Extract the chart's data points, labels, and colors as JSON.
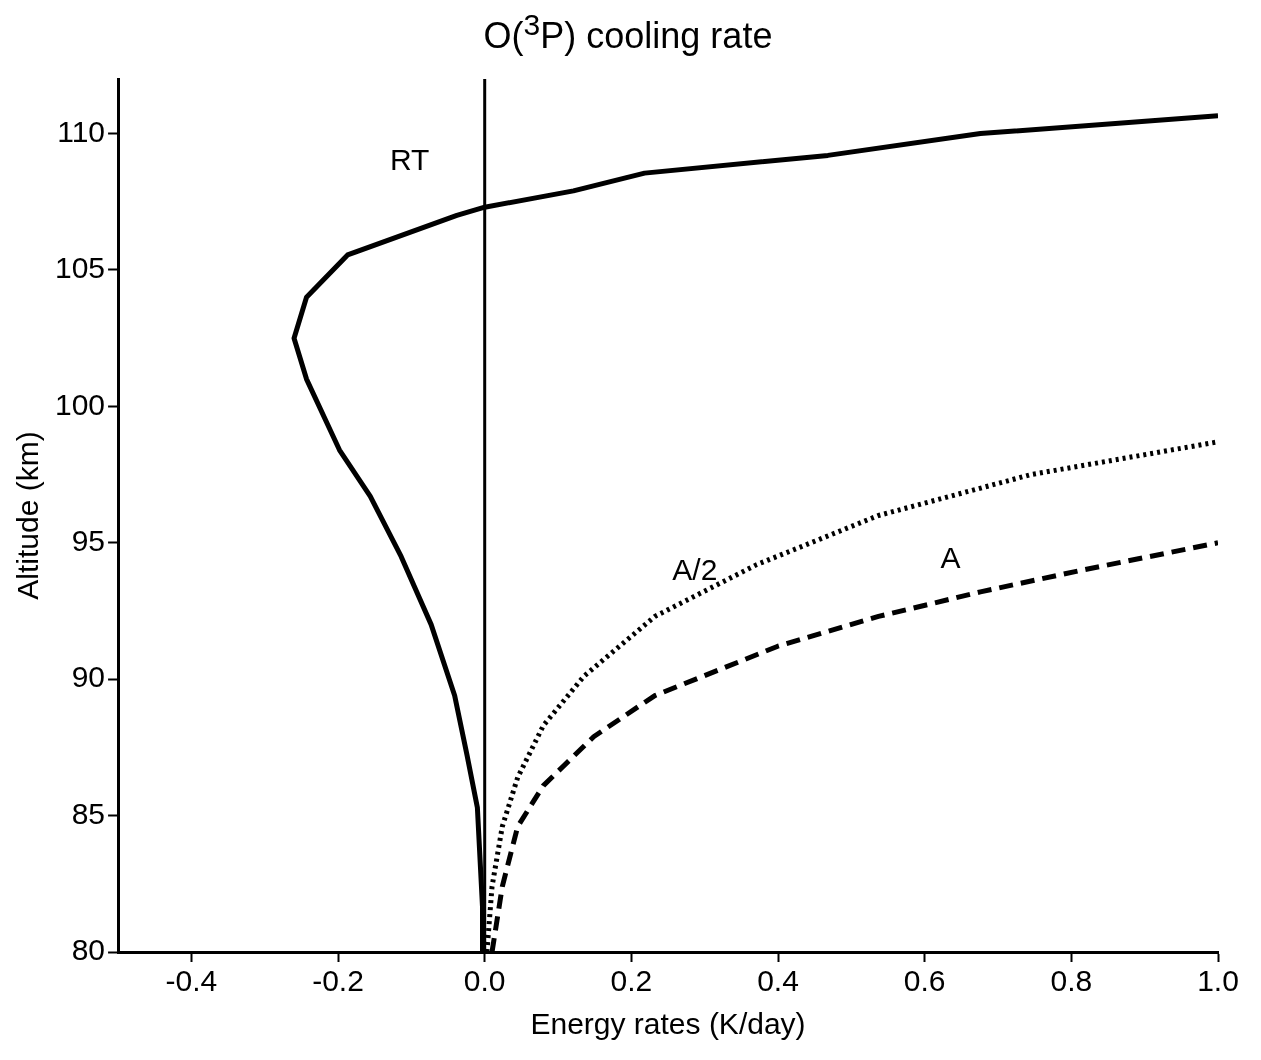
{
  "chart_data": {
    "type": "line",
    "title": "O($^{3}$P) cooling rate",
    "xlabel": "Energy rates (K/day)",
    "ylabel": "Altitude (km)",
    "xlim": [
      -0.5,
      1.0
    ],
    "xticks": [
      {
        "value": -0.4,
        "label": "-0.4"
      },
      {
        "value": -0.2,
        "label": "-0.2"
      },
      {
        "value": 0,
        "label": "0.0"
      },
      {
        "value": 0.2,
        "label": "0.2"
      },
      {
        "value": 0.4,
        "label": "0.4"
      },
      {
        "value": 0.6,
        "label": "0.6"
      },
      {
        "value": 0.8,
        "label": "0.8"
      },
      {
        "value": 1,
        "label": "1.0"
      }
    ],
    "ylim": [
      80,
      112
    ],
    "yticks": [
      80,
      85,
      90,
      95,
      100,
      105,
      110
    ],
    "grid": false,
    "legend": false,
    "marker": "none",
    "ref_lines": [
      {
        "axis": "x",
        "value": 0,
        "color": "#000000",
        "line_style": "solid"
      }
    ],
    "series": [
      {
        "name": "RT",
        "color": "#000000",
        "line_style": "solid",
        "x": [
          -0.003,
          -0.003,
          -0.01,
          -0.024,
          -0.041,
          -0.073,
          -0.114,
          -0.156,
          -0.198,
          -0.243,
          -0.26,
          -0.243,
          -0.187,
          -0.038,
          0,
          0.121,
          0.218,
          0.468,
          0.676,
          1.0
        ],
        "values": [
          80,
          81.65,
          85.3,
          87.2,
          89.4,
          92,
          94.5,
          96.7,
          98.4,
          101,
          102.5,
          104,
          105.55,
          107,
          107.3,
          107.9,
          108.55,
          109.2,
          110,
          110.65
        ]
      },
      {
        "name": "A/2",
        "color": "#000000",
        "line_style": "dotted",
        "x": [
          0.003,
          0.01,
          0.024,
          0.045,
          0.08,
          0.135,
          0.232,
          0.371,
          0.537,
          0.745,
          1.0
        ],
        "values": [
          80,
          82.4,
          84.6,
          86.4,
          88.3,
          90.1,
          92.3,
          94.2,
          96,
          97.5,
          98.7
        ]
      },
      {
        "name": "A",
        "color": "#000000",
        "line_style": "dashed",
        "x": [
          0.01,
          0.024,
          0.045,
          0.08,
          0.149,
          0.232,
          0.399,
          0.537,
          0.676,
          0.815,
          1.0
        ],
        "values": [
          80,
          82.4,
          84.6,
          86.1,
          87.9,
          89.4,
          91.2,
          92.3,
          93.2,
          94,
          95
        ]
      }
    ]
  }
}
